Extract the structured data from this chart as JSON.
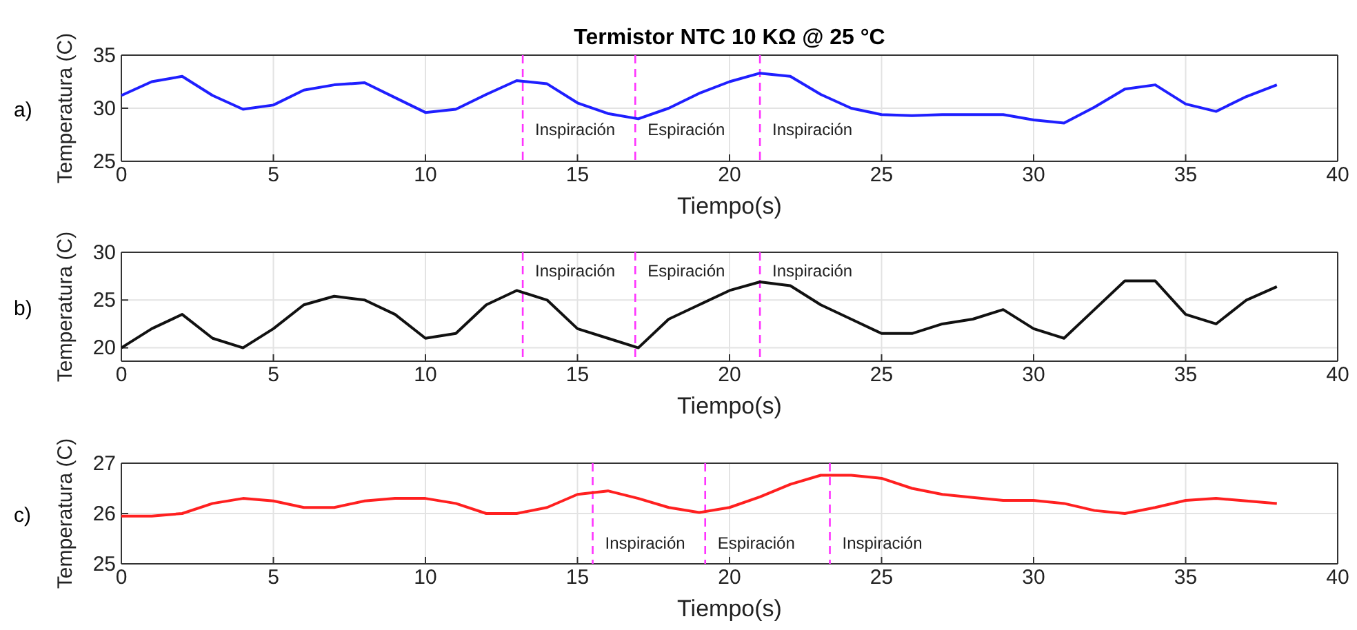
{
  "chart_data": [
    {
      "type": "line",
      "title": "Termistor NTC 10 KΩ @ 25 °C",
      "xlabel": "Tiempo(s)",
      "ylabel": "Temperatura (C)",
      "x": [
        0,
        1,
        2,
        3,
        4,
        5,
        6,
        7,
        8,
        9,
        10,
        11,
        12,
        13,
        14,
        15,
        16,
        17,
        18,
        19,
        20,
        21,
        22,
        23,
        24,
        25,
        26,
        27,
        28,
        29,
        30,
        31,
        32,
        33,
        34,
        35,
        36,
        37,
        38
      ],
      "series": [
        {
          "color": "#1f1fff",
          "values": [
            31.2,
            32.5,
            33,
            31.2,
            29.9,
            30.3,
            31.7,
            32.2,
            32.4,
            31,
            29.6,
            29.9,
            31.3,
            32.6,
            32.3,
            30.5,
            29.5,
            29,
            30,
            31.4,
            32.5,
            33.3,
            33,
            31.3,
            30,
            29.4,
            29.3,
            29.4,
            29.4,
            29.4,
            28.9,
            28.6,
            30.1,
            31.8,
            32.2,
            30.4,
            29.7,
            31.1,
            32.2
          ]
        }
      ],
      "xlim": [
        0,
        40
      ],
      "xticks": [
        0,
        5,
        10,
        15,
        20,
        25,
        30,
        35,
        40
      ],
      "ylim": [
        25,
        35
      ],
      "yticks": [
        25,
        30,
        35
      ],
      "grid": true,
      "ref_lines": [
        {
          "axis": "x",
          "value": 13.2,
          "label": "Inspiración",
          "color": "#ff33ff",
          "line_style": "dashed"
        },
        {
          "axis": "x",
          "value": 16.9,
          "label": "Espiración",
          "color": "#ff33ff",
          "line_style": "dashed"
        },
        {
          "axis": "x",
          "value": 21,
          "label": "Inspiración",
          "color": "#ff33ff",
          "line_style": "dashed"
        }
      ],
      "annotations": [
        "a)"
      ]
    },
    {
      "type": "line",
      "xlabel": "Tiempo(s)",
      "ylabel": "Temperatura (C)",
      "x": [
        0,
        1,
        2,
        3,
        4,
        5,
        6,
        7,
        8,
        9,
        10,
        11,
        12,
        13,
        14,
        15,
        16,
        17,
        18,
        19,
        20,
        21,
        22,
        23,
        24,
        25,
        26,
        27,
        28,
        29,
        30,
        31,
        32,
        33,
        34,
        35,
        36,
        37,
        38
      ],
      "series": [
        {
          "color": "#111111",
          "values": [
            20,
            22,
            23.5,
            21,
            20,
            22,
            24.5,
            25.4,
            25,
            23.5,
            21,
            21.5,
            24.5,
            26,
            25,
            22,
            21,
            20,
            23,
            24.5,
            26,
            26.9,
            26.5,
            24.5,
            23,
            21.5,
            21.5,
            22.5,
            23,
            24,
            22,
            21,
            24,
            27,
            27,
            23.5,
            22.5,
            25,
            26.4
          ]
        }
      ],
      "xlim": [
        0,
        40
      ],
      "xticks": [
        0,
        5,
        10,
        15,
        20,
        25,
        30,
        35,
        40
      ],
      "ylim": [
        18.6,
        30
      ],
      "yticks": [
        20,
        25,
        30
      ],
      "grid": true,
      "ref_lines": [
        {
          "axis": "x",
          "value": 13.2,
          "label": "Inspiración",
          "color": "#ff33ff",
          "line_style": "dashed"
        },
        {
          "axis": "x",
          "value": 16.9,
          "label": "Espiración",
          "color": "#ff33ff",
          "line_style": "dashed"
        },
        {
          "axis": "x",
          "value": 21,
          "label": "Inspiración",
          "color": "#ff33ff",
          "line_style": "dashed"
        }
      ],
      "annotations": [
        "b)"
      ]
    },
    {
      "type": "line",
      "xlabel": "Tiempo(s)",
      "ylabel": "Temperatura (C)",
      "x": [
        0,
        1,
        2,
        3,
        4,
        5,
        6,
        7,
        8,
        9,
        10,
        11,
        12,
        13,
        14,
        15,
        16,
        17,
        18,
        19,
        20,
        21,
        22,
        23,
        24,
        25,
        26,
        27,
        28,
        29,
        30,
        31,
        32,
        33,
        34,
        35,
        36,
        37,
        38
      ],
      "series": [
        {
          "color": "#ff2020",
          "values": [
            25.95,
            25.95,
            26,
            26.2,
            26.3,
            26.25,
            26.12,
            26.12,
            26.25,
            26.3,
            26.3,
            26.2,
            26,
            26,
            26.12,
            26.38,
            26.45,
            26.3,
            26.12,
            26.02,
            26.12,
            26.33,
            26.58,
            26.76,
            26.76,
            26.7,
            26.5,
            26.38,
            26.32,
            26.26,
            26.26,
            26.2,
            26.06,
            26,
            26.12,
            26.26,
            26.3,
            26.25,
            26.2
          ]
        }
      ],
      "xlim": [
        0,
        40
      ],
      "xticks": [
        0,
        5,
        10,
        15,
        20,
        25,
        30,
        35,
        40
      ],
      "ylim": [
        25,
        27
      ],
      "yticks": [
        25,
        26,
        27
      ],
      "grid": true,
      "ref_lines": [
        {
          "axis": "x",
          "value": 15.5,
          "label": "Inspiración",
          "color": "#ff33ff",
          "line_style": "dashed"
        },
        {
          "axis": "x",
          "value": 19.2,
          "label": "Espiración",
          "color": "#ff33ff",
          "line_style": "dashed"
        },
        {
          "axis": "x",
          "value": 23.3,
          "label": "Inspiración",
          "color": "#ff33ff",
          "line_style": "dashed"
        }
      ],
      "annotations": [
        "c)"
      ]
    }
  ]
}
